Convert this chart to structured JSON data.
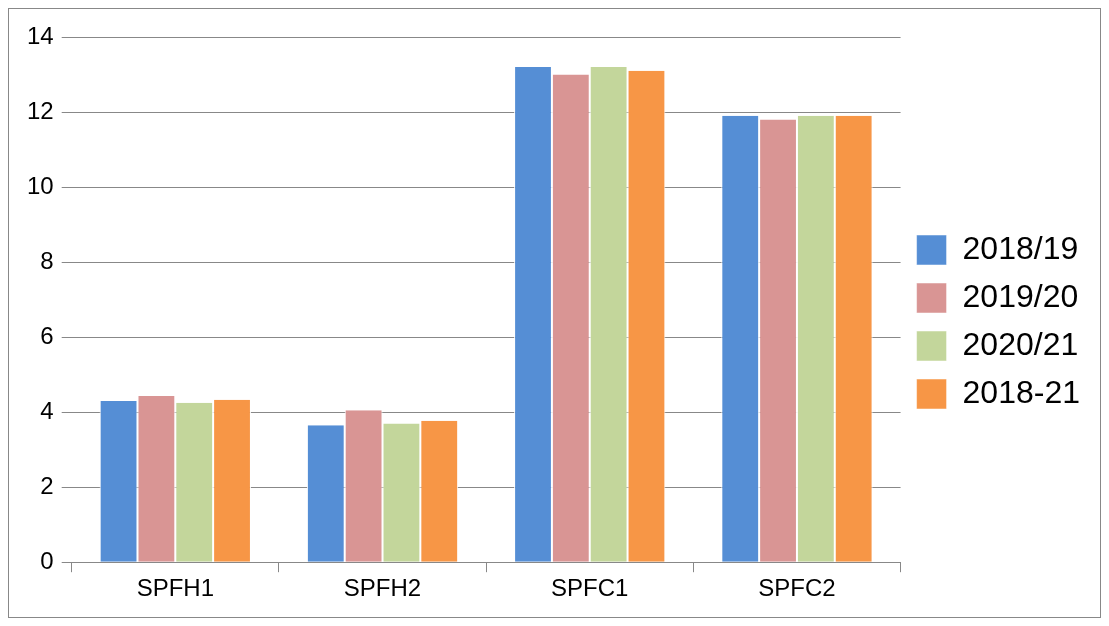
{
  "chart_data": {
    "type": "bar",
    "categories": [
      "SPFH1",
      "SPFH2",
      "SPFC1",
      "SPFC2"
    ],
    "series": [
      {
        "name": "2018/19",
        "color": "#558ed5",
        "values": [
          4.3,
          3.65,
          13.2,
          11.9
        ]
      },
      {
        "name": "2019/20",
        "color": "#d99594",
        "values": [
          4.43,
          4.05,
          13.0,
          11.8
        ]
      },
      {
        "name": "2020/21",
        "color": "#c3d69b",
        "values": [
          4.25,
          3.7,
          13.2,
          11.9
        ]
      },
      {
        "name": "2018-21",
        "color": "#f79646",
        "values": [
          4.33,
          3.77,
          13.1,
          11.9
        ]
      }
    ],
    "ylim": [
      0,
      14
    ],
    "yticks": [
      0,
      2,
      4,
      6,
      8,
      10,
      12,
      14
    ],
    "grid": "y",
    "legend": "right"
  }
}
